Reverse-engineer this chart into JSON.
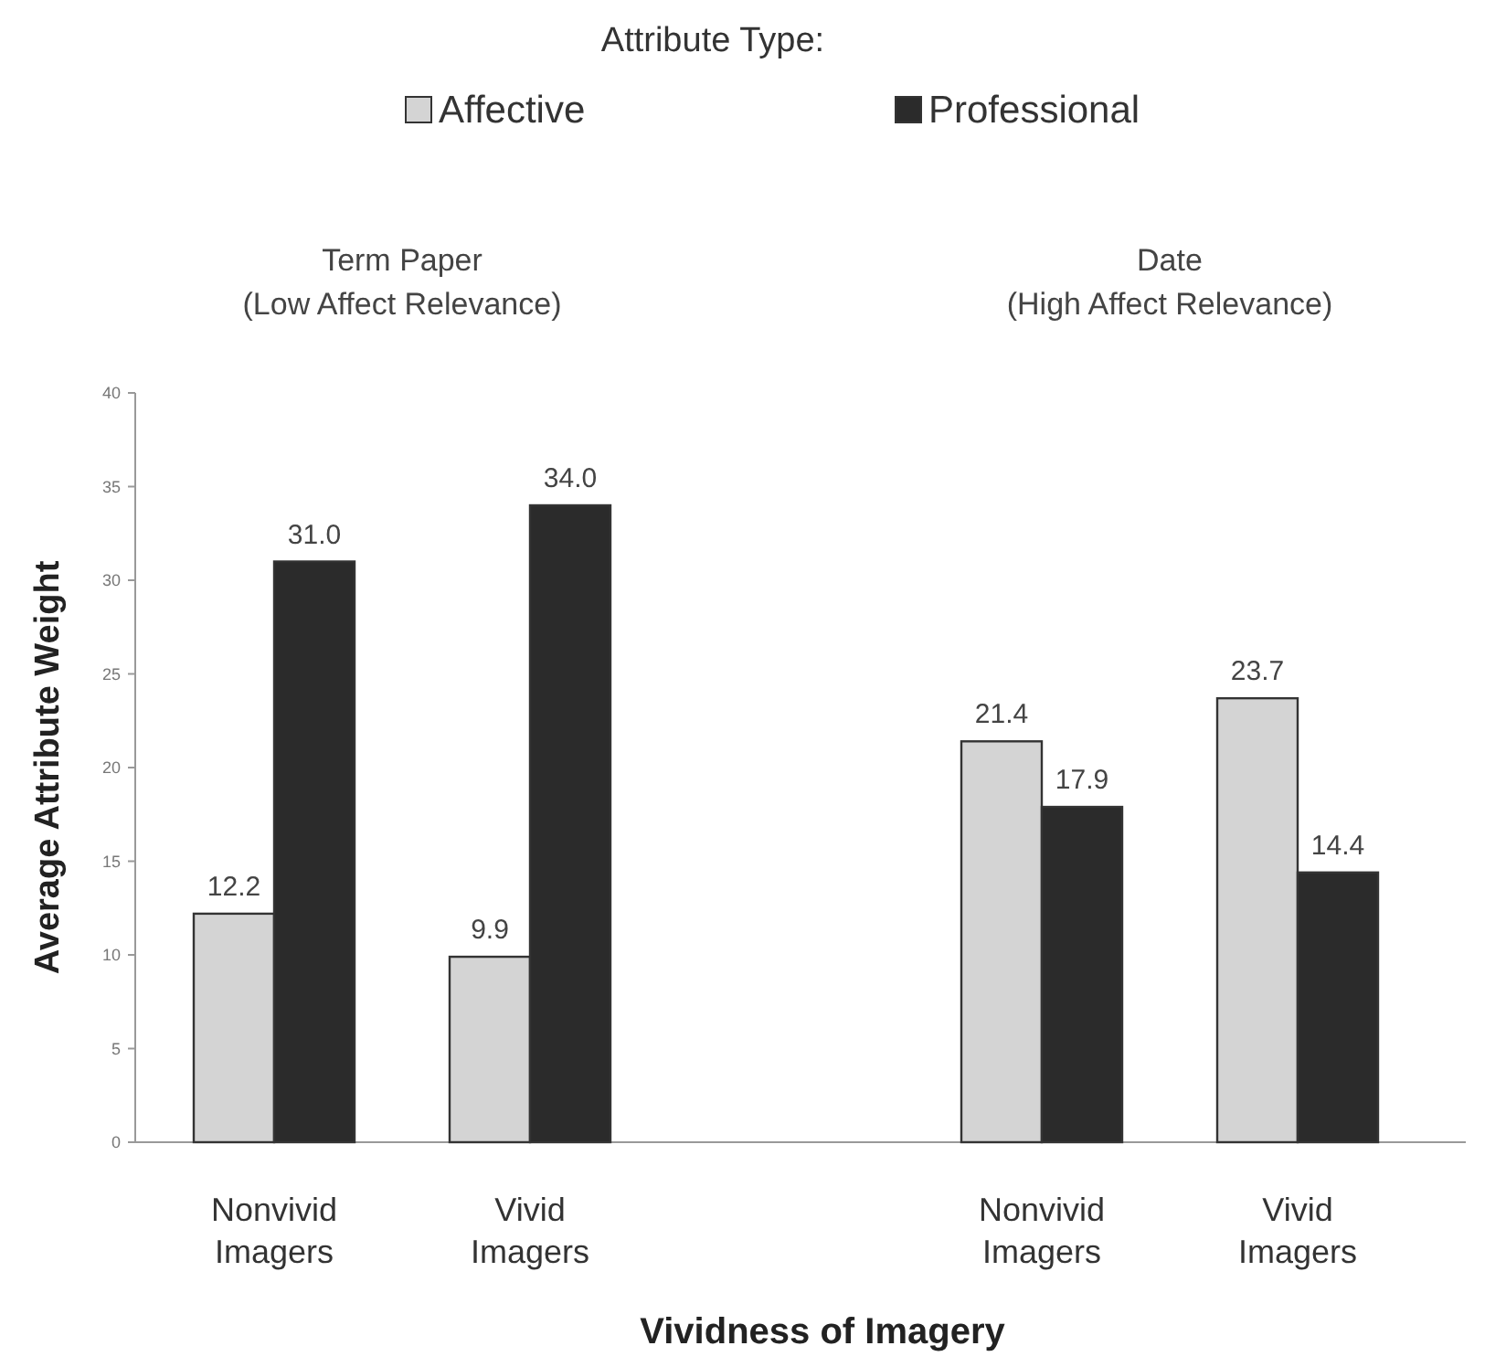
{
  "chart_data": {
    "type": "bar",
    "xlabel": "Vividness of Imagery",
    "ylabel": "Average Attribute Weight",
    "legend_title": "Attribute Type:",
    "legend": "top",
    "categories": [
      "Nonvivid Imagers",
      "Vivid Imagers",
      null,
      "Nonvivid Imagers",
      "Vivid Imagers"
    ],
    "series": [
      {
        "name": "Affective",
        "color": "#d4d4d4",
        "values": [
          12.2,
          9.9,
          null,
          21.4,
          23.7
        ]
      },
      {
        "name": "Professional",
        "color": "#2b2b2b",
        "values": [
          31.0,
          34.0,
          null,
          17.9,
          14.4
        ]
      }
    ],
    "value_labels": [
      [
        "12.2",
        "9.9",
        null,
        "21.4",
        "23.7"
      ],
      [
        "31.0",
        "34.0",
        null,
        "17.9",
        "14.4"
      ]
    ],
    "annotations": [
      "Term Paper\n(Low Affect Relevance)",
      "Date\n(High Affect Relevance)"
    ],
    "ylim": [
      0,
      40
    ],
    "yticks": [
      0,
      5,
      10,
      15,
      20,
      25,
      30,
      35,
      40
    ],
    "grid": false
  }
}
